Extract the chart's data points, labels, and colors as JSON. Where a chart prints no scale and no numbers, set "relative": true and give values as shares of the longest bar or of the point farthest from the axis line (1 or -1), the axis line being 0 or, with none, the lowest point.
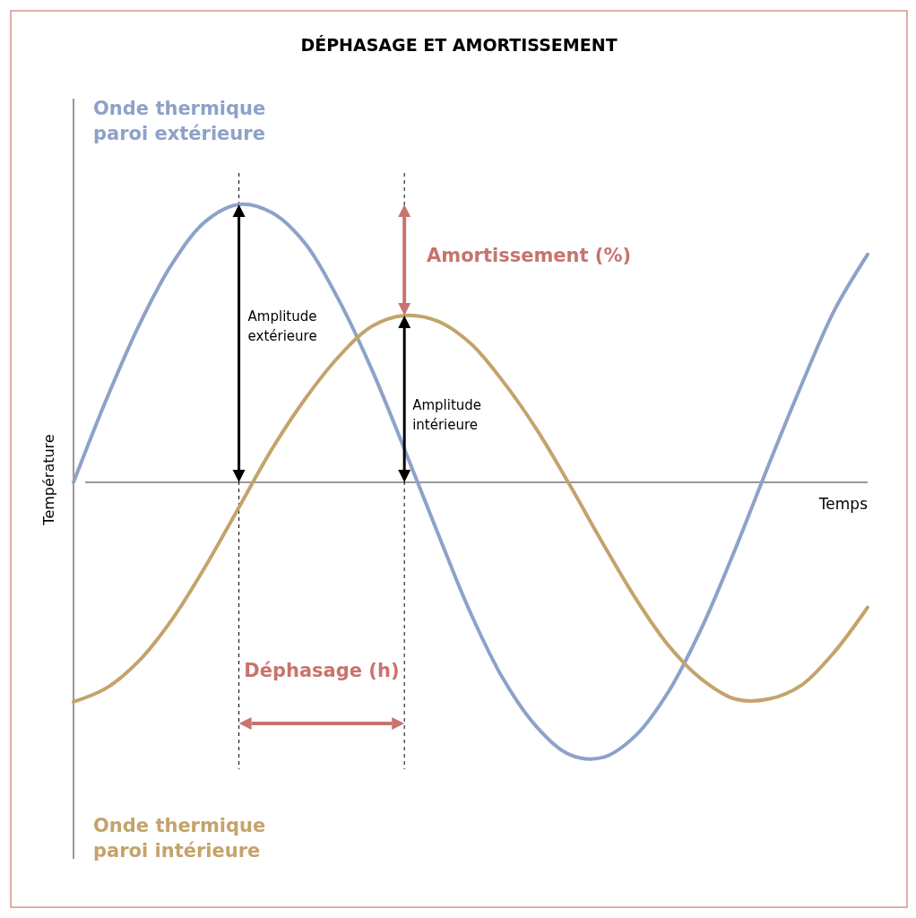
{
  "chart_data": {
    "type": "line",
    "title": "DÉPHASAGE ET AMORTISSEMENT",
    "xlabel": "Temps",
    "ylabel": "Température",
    "relative": true,
    "legend": false,
    "categories": [
      null,
      null,
      null,
      null,
      null,
      null,
      null,
      null,
      null,
      null,
      null,
      null,
      null,
      null,
      null,
      null,
      null,
      null,
      null,
      null,
      null,
      null,
      null,
      null,
      null
    ],
    "series": [
      {
        "name": "Onde thermique paroi extérieure",
        "color": "#8da2c9",
        "values": [
          0,
          0.3,
          0.57,
          0.79,
          0.94,
          1,
          0.97,
          0.86,
          0.66,
          0.41,
          0.12,
          -0.18,
          -0.47,
          -0.71,
          -0.88,
          -0.98,
          -0.99,
          -0.91,
          -0.75,
          -0.52,
          -0.24,
          0.06,
          0.35,
          0.62,
          0.82
        ]
      },
      {
        "name": "Onde thermique paroi intérieure",
        "color": "#c4a36c",
        "values": [
          -0.79,
          -0.74,
          -0.64,
          -0.49,
          -0.3,
          -0.09,
          0.12,
          0.3,
          0.45,
          0.56,
          0.6,
          0.58,
          0.5,
          0.36,
          0.19,
          -0.01,
          -0.22,
          -0.42,
          -0.59,
          -0.71,
          -0.78,
          -0.78,
          -0.73,
          -0.61,
          -0.45
        ]
      }
    ],
    "annotations": [
      "Amplitude extérieure",
      "Amplitude intérieure",
      "Amortissement (%)",
      "Déphasage (h)"
    ]
  }
}
